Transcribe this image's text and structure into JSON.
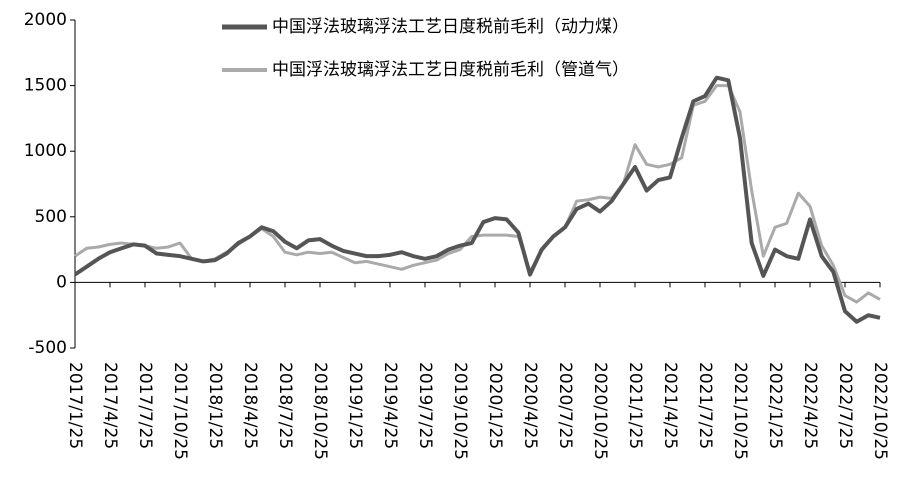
{
  "chart_data": {
    "type": "line",
    "x": [
      "2017/1/25",
      "2017/2/25",
      "2017/3/25",
      "2017/4/25",
      "2017/5/25",
      "2017/6/25",
      "2017/7/25",
      "2017/8/25",
      "2017/9/25",
      "2017/10/25",
      "2017/11/25",
      "2017/12/25",
      "2018/1/25",
      "2018/2/25",
      "2018/3/25",
      "2018/4/25",
      "2018/5/25",
      "2018/6/25",
      "2018/7/25",
      "2018/8/25",
      "2018/9/25",
      "2018/10/25",
      "2018/11/25",
      "2018/12/25",
      "2019/1/25",
      "2019/2/25",
      "2019/3/25",
      "2019/4/25",
      "2019/5/25",
      "2019/6/25",
      "2019/7/25",
      "2019/8/25",
      "2019/9/25",
      "2019/10/25",
      "2019/11/25",
      "2019/12/25",
      "2020/1/25",
      "2020/2/25",
      "2020/3/25",
      "2020/4/25",
      "2020/5/25",
      "2020/6/25",
      "2020/7/25",
      "2020/8/25",
      "2020/9/25",
      "2020/10/25",
      "2020/11/25",
      "2020/12/25",
      "2021/1/25",
      "2021/2/25",
      "2021/3/25",
      "2021/4/25",
      "2021/5/25",
      "2021/6/25",
      "2021/7/25",
      "2021/8/25",
      "2021/9/25",
      "2021/10/25",
      "2021/11/25",
      "2021/12/25",
      "2022/1/25",
      "2022/2/25",
      "2022/3/25",
      "2022/4/25",
      "2022/5/25",
      "2022/6/25",
      "2022/7/25",
      "2022/8/25",
      "2022/9/25",
      "2022/10/25"
    ],
    "xticks": [
      "2017/1/25",
      "2017/4/25",
      "2017/7/25",
      "2017/10/25",
      "2018/1/25",
      "2018/4/25",
      "2018/7/25",
      "2018/10/25",
      "2019/1/25",
      "2019/4/25",
      "2019/7/25",
      "2019/10/25",
      "2020/1/25",
      "2020/4/25",
      "2020/7/25",
      "2020/10/25",
      "2021/1/25",
      "2021/4/25",
      "2021/7/25",
      "2021/10/25",
      "2022/1/25",
      "2022/4/25",
      "2022/7/25",
      "2022/10/25"
    ],
    "series": [
      {
        "name": "中国浮法玻璃浮法工艺日度税前毛利（动力煤）",
        "color": "#555555",
        "values": [
          60,
          120,
          180,
          230,
          260,
          290,
          280,
          220,
          210,
          200,
          180,
          160,
          170,
          220,
          300,
          350,
          420,
          390,
          310,
          260,
          320,
          330,
          280,
          240,
          220,
          200,
          200,
          210,
          230,
          200,
          180,
          200,
          250,
          280,
          300,
          460,
          490,
          480,
          380,
          60,
          250,
          350,
          420,
          560,
          600,
          540,
          620,
          750,
          880,
          700,
          780,
          800,
          1100,
          1380,
          1420,
          1560,
          1540,
          1100,
          300,
          50,
          250,
          200,
          180,
          480,
          200,
          80,
          -220,
          -300,
          -250,
          -270
        ]
      },
      {
        "name": "中国浮法玻璃浮法工艺日度税前毛利（管道气）",
        "color": "#aaaaaa",
        "values": [
          200,
          260,
          270,
          290,
          300,
          290,
          280,
          260,
          270,
          300,
          180,
          160,
          180,
          230,
          290,
          350,
          410,
          350,
          230,
          210,
          230,
          220,
          230,
          190,
          150,
          160,
          140,
          120,
          100,
          130,
          150,
          170,
          220,
          250,
          350,
          360,
          360,
          360,
          350,
          80,
          240,
          350,
          420,
          620,
          630,
          650,
          640,
          750,
          1050,
          900,
          880,
          900,
          950,
          1350,
          1380,
          1500,
          1500,
          1300,
          700,
          200,
          420,
          450,
          680,
          580,
          280,
          130,
          -100,
          -150,
          -80,
          -130
        ]
      }
    ],
    "ylim": [
      -500,
      2000
    ],
    "yticks": [
      -500,
      0,
      500,
      1000,
      1500,
      2000
    ]
  }
}
